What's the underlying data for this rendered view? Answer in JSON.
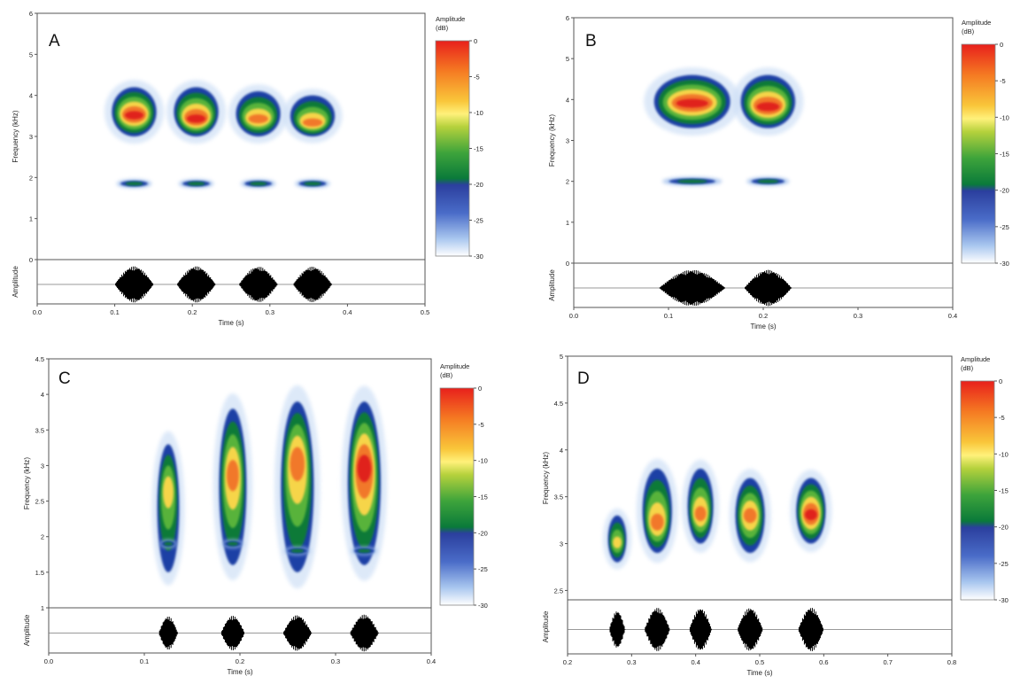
{
  "chart_data": [
    {
      "type": "heatmap",
      "panel_label": "A",
      "title": "",
      "xlabel": "Time (s)",
      "ylabel": "Frequency (kHz)",
      "waveform_ylabel": "Amplitude",
      "xlim": [
        0,
        0.5
      ],
      "ylim": [
        0,
        6
      ],
      "xticks": [
        "0.0",
        "0.1",
        "0.2",
        "0.3",
        "0.4",
        "0.5"
      ],
      "yticks": [
        "0",
        "1",
        "2",
        "3",
        "4",
        "5",
        "6"
      ],
      "colorbar": {
        "title": [
          "Amplitude",
          "(dB)"
        ],
        "ticks": [
          "0",
          "-5",
          "-10",
          "-15",
          "-20",
          "-25",
          "-30"
        ],
        "range": [
          -30,
          0
        ]
      },
      "syllables": [
        {
          "t_start": 0.1,
          "t_end": 0.15,
          "band_low_khz": 3.0,
          "band_high_khz": 4.2,
          "peak_khz": 3.5,
          "harmonic_khz": 1.85,
          "peak_db": -2
        },
        {
          "t_start": 0.18,
          "t_end": 0.23,
          "band_low_khz": 3.0,
          "band_high_khz": 4.2,
          "peak_khz": 3.4,
          "harmonic_khz": 1.85,
          "peak_db": -2
        },
        {
          "t_start": 0.26,
          "t_end": 0.31,
          "band_low_khz": 3.0,
          "band_high_khz": 4.1,
          "peak_khz": 3.4,
          "harmonic_khz": 1.85,
          "peak_db": -3
        },
        {
          "t_start": 0.33,
          "t_end": 0.38,
          "band_low_khz": 3.0,
          "band_high_khz": 4.0,
          "peak_khz": 3.3,
          "harmonic_khz": 1.85,
          "peak_db": -3
        }
      ]
    },
    {
      "type": "heatmap",
      "panel_label": "B",
      "title": "",
      "xlabel": "Time (s)",
      "ylabel": "Frequency (kHz)",
      "waveform_ylabel": "Amplitude",
      "xlim": [
        0,
        0.4
      ],
      "ylim": [
        0,
        6
      ],
      "xticks": [
        "0.0",
        "0.1",
        "0.2",
        "0.3",
        "0.4"
      ],
      "yticks": [
        "0",
        "1",
        "2",
        "3",
        "4",
        "5",
        "6"
      ],
      "colorbar": {
        "title": [
          "Amplitude",
          "(dB)"
        ],
        "ticks": [
          "0",
          "-5",
          "-10",
          "-15",
          "-20",
          "-25",
          "-30"
        ],
        "range": [
          -30,
          0
        ]
      },
      "syllables": [
        {
          "t_start": 0.09,
          "t_end": 0.16,
          "band_low_khz": 3.3,
          "band_high_khz": 4.6,
          "peak_khz": 3.9,
          "harmonic_khz": 2.0,
          "peak_db": -2
        },
        {
          "t_start": 0.18,
          "t_end": 0.23,
          "band_low_khz": 3.3,
          "band_high_khz": 4.6,
          "peak_khz": 3.8,
          "harmonic_khz": 2.0,
          "peak_db": -2
        }
      ]
    },
    {
      "type": "heatmap",
      "panel_label": "C",
      "title": "",
      "xlabel": "Time (s)",
      "ylabel": "Frequency (kHz)",
      "waveform_ylabel": "Amplitude",
      "xlim": [
        0,
        0.4
      ],
      "ylim": [
        1,
        4.5
      ],
      "xticks": [
        "0.0",
        "0.1",
        "0.2",
        "0.3",
        "0.4"
      ],
      "yticks": [
        "1",
        "1.5",
        "2",
        "2.5",
        "3",
        "3.5",
        "4",
        "4.5"
      ],
      "colorbar": {
        "title": [
          "Amplitude",
          "(dB)"
        ],
        "ticks": [
          "0",
          "-5",
          "-10",
          "-15",
          "-20",
          "-25",
          "-30"
        ],
        "range": [
          -30,
          0
        ]
      },
      "syllables": [
        {
          "t_start": 0.115,
          "t_end": 0.135,
          "band_low_khz": 1.5,
          "band_high_khz": 3.3,
          "peak_khz": 2.7,
          "harmonic_khz": 1.9,
          "peak_db": -8
        },
        {
          "t_start": 0.18,
          "t_end": 0.205,
          "band_low_khz": 1.6,
          "band_high_khz": 3.8,
          "peak_khz": 2.9,
          "harmonic_khz": 1.9,
          "peak_db": -6
        },
        {
          "t_start": 0.245,
          "t_end": 0.275,
          "band_low_khz": 1.5,
          "band_high_khz": 3.9,
          "peak_khz": 3.1,
          "harmonic_khz": 1.8,
          "peak_db": -4
        },
        {
          "t_start": 0.315,
          "t_end": 0.345,
          "band_low_khz": 1.6,
          "band_high_khz": 3.9,
          "peak_khz": 3.0,
          "harmonic_khz": 1.8,
          "peak_db": -2
        }
      ]
    },
    {
      "type": "heatmap",
      "panel_label": "D",
      "title": "",
      "xlabel": "Time (s)",
      "ylabel": "Frequency (kHz)",
      "waveform_ylabel": "Amplitude",
      "xlim": [
        0.2,
        0.8
      ],
      "ylim": [
        2.4,
        5
      ],
      "xticks": [
        "0.2",
        "0.3",
        "0.4",
        "0.5",
        "0.6",
        "0.7",
        "0.8"
      ],
      "yticks": [
        "2.5",
        "3",
        "3.5",
        "4",
        "4.5",
        "5"
      ],
      "colorbar": {
        "title": [
          "Amplitude",
          "(dB)"
        ],
        "ticks": [
          "0",
          "-5",
          "-10",
          "-15",
          "-20",
          "-25",
          "-30"
        ],
        "range": [
          -30,
          0
        ]
      },
      "syllables": [
        {
          "t_start": 0.265,
          "t_end": 0.29,
          "band_low_khz": 2.8,
          "band_high_khz": 3.3,
          "peak_khz": 3.0,
          "harmonic_khz": null,
          "peak_db": -12
        },
        {
          "t_start": 0.32,
          "t_end": 0.36,
          "band_low_khz": 2.9,
          "band_high_khz": 3.8,
          "peak_khz": 3.2,
          "harmonic_khz": null,
          "peak_db": -3
        },
        {
          "t_start": 0.39,
          "t_end": 0.425,
          "band_low_khz": 3.0,
          "band_high_khz": 3.8,
          "peak_khz": 3.3,
          "harmonic_khz": null,
          "peak_db": -4
        },
        {
          "t_start": 0.465,
          "t_end": 0.505,
          "band_low_khz": 2.9,
          "band_high_khz": 3.7,
          "peak_khz": 3.3,
          "harmonic_khz": null,
          "peak_db": -3
        },
        {
          "t_start": 0.56,
          "t_end": 0.6,
          "band_low_khz": 3.0,
          "band_high_khz": 3.7,
          "peak_khz": 3.3,
          "harmonic_khz": null,
          "peak_db": -2
        }
      ]
    }
  ]
}
